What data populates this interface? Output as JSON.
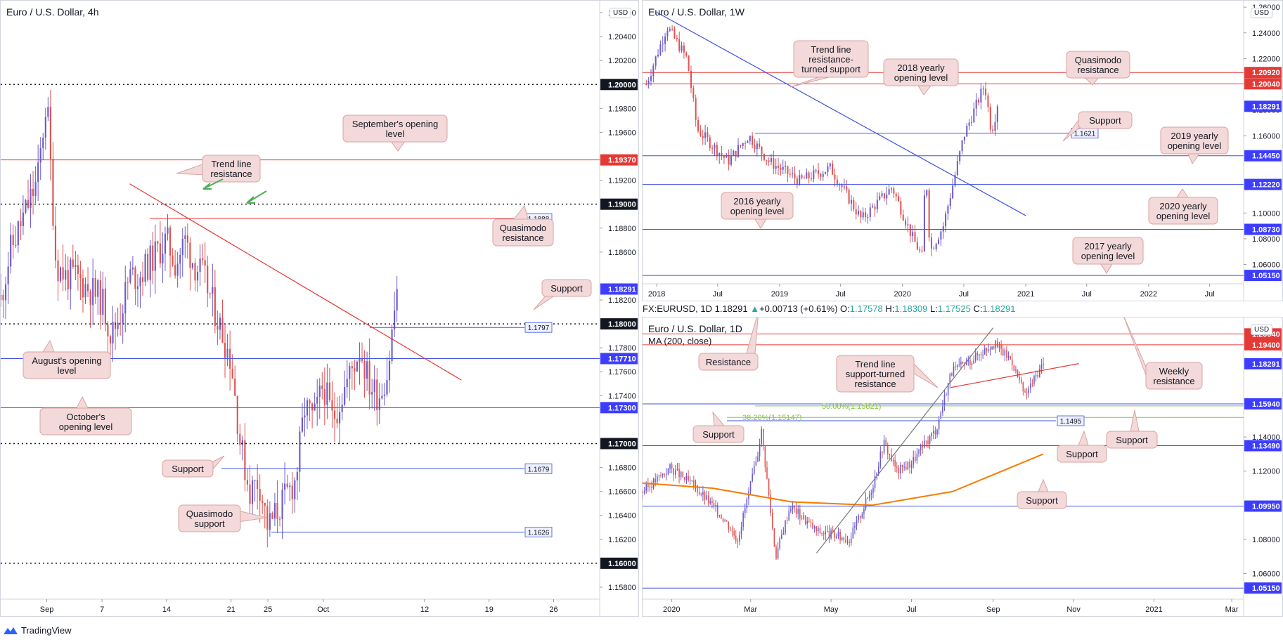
{
  "app": {
    "brand": "TradingView",
    "currency_badge": "USD"
  },
  "colors": {
    "bull": "#6a5acd",
    "bear": "#e0514f",
    "red_line": "#e53935",
    "blue_line": "#3f51e0",
    "price_tag": "#3d3dff",
    "red_tag": "#e53935",
    "annotation_bg": "#f3d9d9",
    "annotation_border": "#d9a3a3",
    "ma_orange": "#f57c00",
    "fib_green": "#8bc34a",
    "arrow_green": "#4caf50"
  },
  "panel_4h": {
    "title": "Euro / U.S. Dollar, 4h",
    "x_ticks": [
      "Sep",
      "7",
      "14",
      "21",
      "25",
      "Oct",
      "12",
      "19",
      "26"
    ],
    "y_ticks": [
      "1.20600",
      "1.20400",
      "1.20200",
      "1.19800",
      "1.19600",
      "1.19200",
      "1.18800",
      "1.18600",
      "1.18200",
      "1.17800",
      "1.17600",
      "1.17400",
      "1.16800",
      "1.16600",
      "1.16400",
      "1.16200",
      "1.15800"
    ],
    "tags": {
      "t120": "1.20000",
      "t1937": "1.19370",
      "t119": "1.19000",
      "t1829": "1.18291",
      "t118": "1.18000",
      "t1771": "1.17710",
      "t1730": "1.17300",
      "t117": "1.17000",
      "t116": "1.16000"
    },
    "line_labels": {
      "l1888": "1.1888",
      "l1797": "1.1797",
      "l1679": "1.1679",
      "l1626": "1.1626"
    },
    "annotations": {
      "sept": "September's opening level",
      "trend": "Trend line resistance",
      "qres": "Quasimodo resistance",
      "support1": "Support",
      "aug": "August's opening level",
      "oct": "October's opening level",
      "support2": "Support",
      "qsup": "Quasimodo support"
    }
  },
  "panel_1w": {
    "title": "Euro / U.S. Dollar, 1W",
    "x_ticks": [
      "2018",
      "Jul",
      "2019",
      "Jul",
      "2020",
      "Jul",
      "2021",
      "Jul",
      "2022",
      "Jul"
    ],
    "y_ticks": [
      "1.26000",
      "1.24000",
      "1.22000",
      "1.18000",
      "1.16000",
      "1.12000",
      "1.10000",
      "1.08000",
      "1.06000"
    ],
    "tags": {
      "t2092": "1.20920",
      "t2004": "1.20040",
      "t1829": "1.18291",
      "t1445": "1.14450",
      "t1222": "1.12220",
      "t0873": "1.08730",
      "t0515": "1.05150"
    },
    "line_labels": {
      "l1621": "1.1621"
    },
    "annotations": {
      "tl": "Trend line resistance-turned support",
      "y2018": "2018 yearly opening level",
      "qres": "Quasimodo resistance",
      "support": "Support",
      "y2019": "2019 yearly opening level",
      "y2016": "2016 yearly opening level",
      "y2020": "2020 yearly opening level",
      "y2017": "2017 yearly opening level"
    }
  },
  "info_bar": {
    "symbol": "FX:EURUSD, 1D",
    "close": "1.18291",
    "change": "+0.00713 (+0.61%)",
    "o_label": "O:",
    "o": "1.17578",
    "h_label": "H:",
    "h": "1.18309",
    "l_label": "L:",
    "l": "1.17525",
    "c_label": "C:",
    "c": "1.18291"
  },
  "panel_1d": {
    "title": "Euro / U.S. Dollar, 1D",
    "ma_label": "MA (200, close)",
    "x_ticks": [
      "2020",
      "Mar",
      "May",
      "Jul",
      "Sep",
      "Nov",
      "2021",
      "Mar"
    ],
    "y_ticks": [
      "1.14000",
      "1.12000",
      "1.08000",
      "1.06000"
    ],
    "tags": {
      "t2004": "1.20040",
      "t1940": "1.19400",
      "t1829": "1.18291",
      "t1594": "1.15940",
      "t1349": "1.13490",
      "t0995": "1.09950",
      "t0515": "1.05150"
    },
    "line_labels": {
      "l1495": "1.1495"
    },
    "fib_labels": {
      "f50": "50.00%(1.15821)",
      "f382": "38.20%(1.15147)"
    },
    "annotations": {
      "resistance": "Resistance",
      "trend": "Trend line support-turned resistance",
      "weekly": "Weekly resistance",
      "support1": "Support",
      "support2": "Support",
      "support3": "Support",
      "support4": "Support"
    }
  },
  "chart_data": [
    {
      "type": "candlestick",
      "title": "Euro / U.S. Dollar, 4h",
      "xlabel": "",
      "ylabel": "",
      "ylim": [
        1.157,
        1.207
      ],
      "x_ticks": [
        "Sep",
        "7",
        "14",
        "21",
        "25",
        "Oct",
        "12",
        "19",
        "26"
      ],
      "last_close": 1.18291,
      "close_path": [
        {
          "date": "2020-08-27",
          "close": 1.182
        },
        {
          "date": "2020-08-28",
          "close": 1.186
        },
        {
          "date": "2020-08-31",
          "close": 1.192
        },
        {
          "date": "2020-09-01",
          "close": 1.199
        },
        {
          "date": "2020-09-02",
          "close": 1.185
        },
        {
          "date": "2020-09-03",
          "close": 1.184
        },
        {
          "date": "2020-09-04",
          "close": 1.184
        },
        {
          "date": "2020-09-07",
          "close": 1.182
        },
        {
          "date": "2020-09-08",
          "close": 1.179
        },
        {
          "date": "2020-09-09",
          "close": 1.181
        },
        {
          "date": "2020-09-10",
          "close": 1.184
        },
        {
          "date": "2020-09-11",
          "close": 1.184
        },
        {
          "date": "2020-09-14",
          "close": 1.187
        },
        {
          "date": "2020-09-15",
          "close": 1.185
        },
        {
          "date": "2020-09-16",
          "close": 1.187
        },
        {
          "date": "2020-09-17",
          "close": 1.185
        },
        {
          "date": "2020-09-18",
          "close": 1.184
        },
        {
          "date": "2020-09-21",
          "close": 1.177
        },
        {
          "date": "2020-09-22",
          "close": 1.17
        },
        {
          "date": "2020-09-23",
          "close": 1.166
        },
        {
          "date": "2020-09-24",
          "close": 1.167
        },
        {
          "date": "2020-09-25",
          "close": 1.163
        },
        {
          "date": "2020-09-28",
          "close": 1.167
        },
        {
          "date": "2020-09-29",
          "close": 1.173
        },
        {
          "date": "2020-09-30",
          "close": 1.172
        },
        {
          "date": "2020-10-01",
          "close": 1.175
        },
        {
          "date": "2020-10-02",
          "close": 1.172
        },
        {
          "date": "2020-10-05",
          "close": 1.178
        },
        {
          "date": "2020-10-06",
          "close": 1.175
        },
        {
          "date": "2020-10-07",
          "close": 1.174
        },
        {
          "date": "2020-10-08",
          "close": 1.176
        },
        {
          "date": "2020-10-09",
          "close": 1.183
        }
      ],
      "levels": [
        {
          "value": 1.2,
          "label": "1.20000",
          "style": "dotted"
        },
        {
          "value": 1.1937,
          "label": "1.19370",
          "name": "September's opening level"
        },
        {
          "value": 1.19,
          "label": "1.19000",
          "style": "dotted"
        },
        {
          "value": 1.1888,
          "label": "1.1888",
          "name": "Quasimodo resistance"
        },
        {
          "value": 1.18,
          "label": "1.18000",
          "style": "dotted"
        },
        {
          "value": 1.1797,
          "label": "1.1797",
          "name": "Support"
        },
        {
          "value": 1.1771,
          "label": "1.17710",
          "name": "August's opening level"
        },
        {
          "value": 1.173,
          "label": "1.17300",
          "name": "October's opening level"
        },
        {
          "value": 1.17,
          "label": "1.17000",
          "style": "dotted"
        },
        {
          "value": 1.1679,
          "label": "1.1679",
          "name": "Support"
        },
        {
          "value": 1.1626,
          "label": "1.1626",
          "name": "Quasimodo support"
        },
        {
          "value": 1.16,
          "label": "1.16000",
          "style": "dotted"
        }
      ],
      "trend_lines": [
        {
          "name": "Trend line resistance",
          "from": {
            "date": "2020-09-10",
            "value": 1.1917
          },
          "to": {
            "date": "2020-10-16",
            "value": 1.1753
          }
        }
      ]
    },
    {
      "type": "candlestick",
      "title": "Euro / U.S. Dollar, 1W",
      "xlabel": "",
      "ylabel": "",
      "ylim": [
        1.045,
        1.265
      ],
      "x_ticks": [
        "2018",
        "Jul",
        "2019",
        "Jul",
        "2020",
        "Jul",
        "2021",
        "Jul",
        "2022",
        "Jul"
      ],
      "last_close": 1.18291,
      "close_path": [
        {
          "date": "2017-12",
          "close": 1.2
        },
        {
          "date": "2018-02",
          "close": 1.245
        },
        {
          "date": "2018-04",
          "close": 1.22
        },
        {
          "date": "2018-05",
          "close": 1.165
        },
        {
          "date": "2018-08",
          "close": 1.14
        },
        {
          "date": "2018-10",
          "close": 1.16
        },
        {
          "date": "2018-12",
          "close": 1.14
        },
        {
          "date": "2019-03",
          "close": 1.125
        },
        {
          "date": "2019-06",
          "close": 1.135
        },
        {
          "date": "2019-09",
          "close": 1.095
        },
        {
          "date": "2019-12",
          "close": 1.12
        },
        {
          "date": "2020-02",
          "close": 1.08
        },
        {
          "date": "2020-03",
          "close": 1.065
        },
        {
          "date": "2020-03-09",
          "close": 1.14
        },
        {
          "date": "2020-03-23",
          "close": 1.07
        },
        {
          "date": "2020-05",
          "close": 1.09
        },
        {
          "date": "2020-06",
          "close": 1.125
        },
        {
          "date": "2020-07",
          "close": 1.16
        },
        {
          "date": "2020-08",
          "close": 1.18
        },
        {
          "date": "2020-09",
          "close": 1.2
        },
        {
          "date": "2020-09-21",
          "close": 1.163
        },
        {
          "date": "2020-10-09",
          "close": 1.183
        }
      ],
      "levels": [
        {
          "value": 1.2092,
          "label": "1.20920",
          "name": "Quasimodo resistance"
        },
        {
          "value": 1.2004,
          "label": "1.20040",
          "name": "2018 yearly opening level"
        },
        {
          "value": 1.1621,
          "label": "1.1621",
          "name": "Support"
        },
        {
          "value": 1.1445,
          "label": "1.14450",
          "name": "2019 yearly opening level"
        },
        {
          "value": 1.1222,
          "label": "1.12220",
          "name": "2020 yearly opening level"
        },
        {
          "value": 1.0873,
          "label": "1.08730",
          "name": "2016 yearly opening level"
        },
        {
          "value": 1.0515,
          "label": "1.05150",
          "name": "2017 yearly opening level"
        }
      ],
      "trend_lines": [
        {
          "name": "Trend line resistance-turned support",
          "from": {
            "date": "2018-01",
            "value": 1.256
          },
          "to": {
            "date": "2021-01",
            "value": 1.098
          }
        }
      ]
    },
    {
      "type": "candlestick",
      "title": "Euro / U.S. Dollar, 1D",
      "xlabel": "",
      "ylabel": "",
      "ylim": [
        1.045,
        1.21
      ],
      "x_ticks": [
        "2020",
        "Mar",
        "May",
        "Jul",
        "Sep",
        "Nov",
        "2021",
        "Mar"
      ],
      "last_close": 1.18291,
      "ohlc_last": {
        "open": 1.17578,
        "high": 1.18309,
        "low": 1.17525,
        "close": 1.18291
      },
      "close_path": [
        {
          "date": "2019-12-10",
          "close": 1.108
        },
        {
          "date": "2019-12-31",
          "close": 1.122
        },
        {
          "date": "2020-01-20",
          "close": 1.11
        },
        {
          "date": "2020-02-10",
          "close": 1.092
        },
        {
          "date": "2020-02-20",
          "close": 1.08
        },
        {
          "date": "2020-03-06",
          "close": 1.128
        },
        {
          "date": "2020-03-09",
          "close": 1.145
        },
        {
          "date": "2020-03-20",
          "close": 1.07
        },
        {
          "date": "2020-03-31",
          "close": 1.1
        },
        {
          "date": "2020-04-20",
          "close": 1.085
        },
        {
          "date": "2020-05-15",
          "close": 1.08
        },
        {
          "date": "2020-06-01",
          "close": 1.11
        },
        {
          "date": "2020-06-10",
          "close": 1.137
        },
        {
          "date": "2020-06-20",
          "close": 1.12
        },
        {
          "date": "2020-07-01",
          "close": 1.125
        },
        {
          "date": "2020-07-20",
          "close": 1.145
        },
        {
          "date": "2020-07-31",
          "close": 1.178
        },
        {
          "date": "2020-08-15",
          "close": 1.185
        },
        {
          "date": "2020-09-01",
          "close": 1.195
        },
        {
          "date": "2020-09-15",
          "close": 1.185
        },
        {
          "date": "2020-09-25",
          "close": 1.164
        },
        {
          "date": "2020-10-05",
          "close": 1.178
        },
        {
          "date": "2020-10-09",
          "close": 1.183
        }
      ],
      "ma200": [
        {
          "date": "2019-12-10",
          "value": 1.113
        },
        {
          "date": "2020-02-01",
          "value": 1.11
        },
        {
          "date": "2020-04-01",
          "value": 1.102
        },
        {
          "date": "2020-06-01",
          "value": 1.1
        },
        {
          "date": "2020-08-01",
          "value": 1.108
        },
        {
          "date": "2020-10-09",
          "value": 1.13
        }
      ],
      "levels": [
        {
          "value": 1.2004,
          "label": "1.20040",
          "name": "Weekly resistance"
        },
        {
          "value": 1.194,
          "label": "1.19400",
          "name": "Resistance"
        },
        {
          "value": 1.1594,
          "label": "1.15940",
          "name": "Support"
        },
        {
          "value": 1.15821,
          "label": "50.00%(1.15821)",
          "style": "fib"
        },
        {
          "value": 1.15147,
          "label": "38.20%(1.15147)",
          "style": "fib"
        },
        {
          "value": 1.1495,
          "label": "1.1495",
          "name": "Support"
        },
        {
          "value": 1.1349,
          "label": "1.13490",
          "name": "Support"
        },
        {
          "value": 1.0995,
          "label": "1.09950",
          "name": "Support"
        },
        {
          "value": 1.0515,
          "label": "1.05150"
        }
      ],
      "trend_lines": [
        {
          "name": "Trend line support-turned resistance",
          "from": {
            "date": "2020-07-31",
            "value": 1.169
          },
          "to": {
            "date": "2020-11-05",
            "value": 1.183
          }
        }
      ]
    }
  ]
}
